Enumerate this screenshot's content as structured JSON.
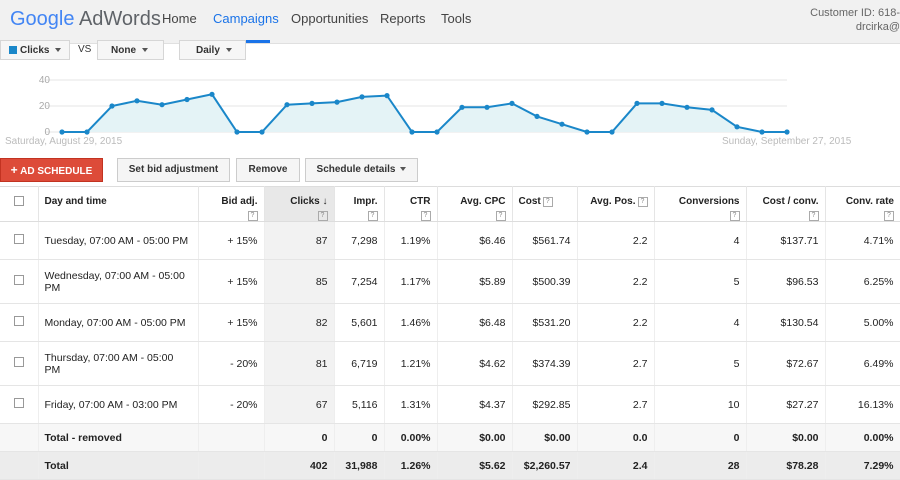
{
  "app": {
    "logo_google": "Google",
    "logo_product": "AdWords",
    "nav": [
      "Home",
      "Campaigns",
      "Opportunities",
      "Reports",
      "Tools"
    ],
    "active_nav": "Campaigns",
    "customer_id": "Customer ID: 618-",
    "user": "drcirka@"
  },
  "chart_controls": {
    "metric1": "Clicks",
    "vs": "VS",
    "metric2": "None",
    "period": "Daily",
    "metric1_color": "#1a87c9"
  },
  "chart_data": {
    "type": "area",
    "title": "",
    "start_label": "Saturday, August 29, 2015",
    "end_label": "Sunday, September 27, 2015",
    "yticks": [
      0,
      20,
      40
    ],
    "ylim": [
      0,
      40
    ],
    "grid": true,
    "line_color": "#1a87c9",
    "fill_color": "#e4f3f6",
    "series": [
      {
        "values": [
          0,
          0,
          20,
          24,
          21,
          25,
          29,
          0,
          0,
          21,
          22,
          23,
          27,
          28,
          0,
          0,
          19,
          19,
          22,
          12,
          6,
          0,
          0,
          22,
          22,
          19,
          17,
          4,
          0,
          0
        ]
      }
    ]
  },
  "actions": {
    "ad_schedule": "AD SCHEDULE",
    "set_bid": "Set bid adjustment",
    "remove": "Remove",
    "schedule_details": "Schedule details"
  },
  "table": {
    "headers": {
      "day_time": "Day and time",
      "bid_adj": "Bid adj.",
      "clicks": "Clicks",
      "impr": "Impr.",
      "ctr": "CTR",
      "avg_cpc": "Avg. CPC",
      "cost": "Cost",
      "avg_pos": "Avg. Pos.",
      "conversions": "Conversions",
      "cost_conv": "Cost / conv.",
      "conv_rate": "Conv. rate"
    },
    "rows": [
      {
        "day": "Tuesday, 07:00 AM - 05:00 PM",
        "bid": "+ 15%",
        "clicks": "87",
        "impr": "7,298",
        "ctr": "1.19%",
        "cpc": "$6.46",
        "cost": "$561.74",
        "pos": "2.2",
        "conv": "4",
        "cpa": "$137.71",
        "rate": "4.71%"
      },
      {
        "day": "Wednesday, 07:00 AM - 05:00 PM",
        "bid": "+ 15%",
        "clicks": "85",
        "impr": "7,254",
        "ctr": "1.17%",
        "cpc": "$5.89",
        "cost": "$500.39",
        "pos": "2.2",
        "conv": "5",
        "cpa": "$96.53",
        "rate": "6.25%"
      },
      {
        "day": "Monday, 07:00 AM - 05:00 PM",
        "bid": "+ 15%",
        "clicks": "82",
        "impr": "5,601",
        "ctr": "1.46%",
        "cpc": "$6.48",
        "cost": "$531.20",
        "pos": "2.2",
        "conv": "4",
        "cpa": "$130.54",
        "rate": "5.00%"
      },
      {
        "day": "Thursday, 07:00 AM - 05:00 PM",
        "bid": "- 20%",
        "clicks": "81",
        "impr": "6,719",
        "ctr": "1.21%",
        "cpc": "$4.62",
        "cost": "$374.39",
        "pos": "2.7",
        "conv": "5",
        "cpa": "$72.67",
        "rate": "6.49%"
      },
      {
        "day": "Friday, 07:00 AM - 03:00 PM",
        "bid": "- 20%",
        "clicks": "67",
        "impr": "5,116",
        "ctr": "1.31%",
        "cpc": "$4.37",
        "cost": "$292.85",
        "pos": "2.7",
        "conv": "10",
        "cpa": "$27.27",
        "rate": "16.13%"
      }
    ],
    "removed": {
      "label": "Total - removed",
      "clicks": "0",
      "impr": "0",
      "ctr": "0.00%",
      "cpc": "$0.00",
      "cost": "$0.00",
      "pos": "0.0",
      "conv": "0",
      "cpa": "$0.00",
      "rate": "0.00%"
    },
    "total": {
      "label": "Total",
      "clicks": "402",
      "impr": "31,988",
      "ctr": "1.26%",
      "cpc": "$5.62",
      "cost": "$2,260.57",
      "pos": "2.4",
      "conv": "28",
      "cpa": "$78.28",
      "rate": "7.29%"
    }
  }
}
